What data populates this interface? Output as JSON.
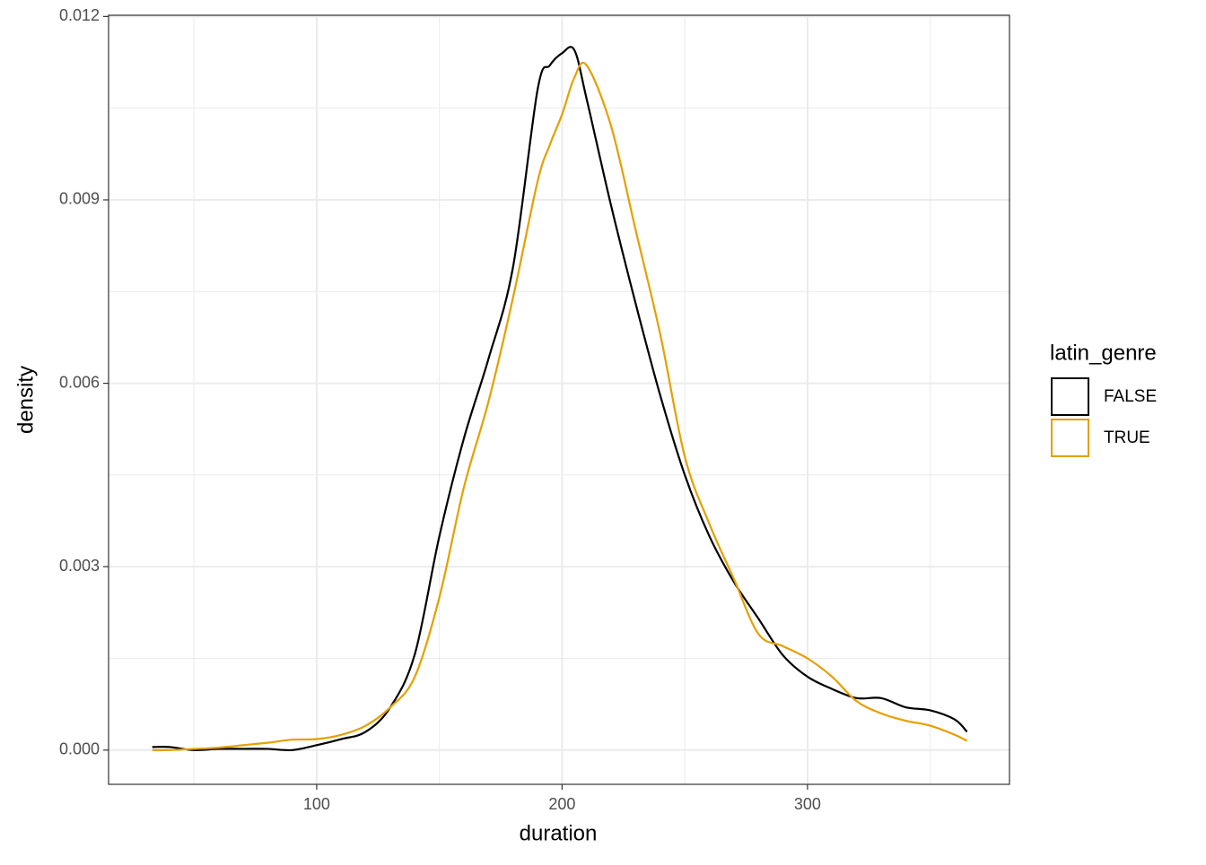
{
  "chart_data": {
    "type": "line",
    "xlabel": "duration",
    "ylabel": "density",
    "legend_title": "latin_genre",
    "legend_position": "right",
    "x": [
      33,
      40,
      50,
      60,
      70,
      80,
      90,
      100,
      110,
      120,
      130,
      140,
      150,
      160,
      170,
      180,
      190,
      195,
      200,
      205,
      210,
      220,
      230,
      240,
      250,
      260,
      270,
      280,
      290,
      300,
      310,
      320,
      330,
      340,
      350,
      360,
      365
    ],
    "series": [
      {
        "name": "FALSE",
        "color": "#000000",
        "values": [
          5e-05,
          5e-05,
          0.0,
          2e-05,
          2e-05,
          2e-05,
          0.0,
          8e-05,
          0.00018,
          0.0003,
          0.0007,
          0.00157,
          0.0035,
          0.0051,
          0.0064,
          0.0079,
          0.0108,
          0.0112,
          0.0114,
          0.01145,
          0.01065,
          0.0089,
          0.0073,
          0.0058,
          0.0045,
          0.0035,
          0.00275,
          0.00215,
          0.00155,
          0.0012,
          0.001,
          0.00085,
          0.00085,
          0.0007,
          0.00065,
          0.0005,
          0.0003
        ]
      },
      {
        "name": "TRUE",
        "color": "#E69F00",
        "values": [
          0.0,
          0.0,
          2e-05,
          4e-05,
          8e-05,
          0.00012,
          0.00017,
          0.00018,
          0.00025,
          0.0004,
          0.0007,
          0.0012,
          0.0025,
          0.0043,
          0.0057,
          0.0074,
          0.0093,
          0.0099,
          0.0104,
          0.011,
          0.0112,
          0.0102,
          0.0085,
          0.0068,
          0.0048,
          0.0037,
          0.0028,
          0.0019,
          0.0017,
          0.0015,
          0.0012,
          0.0008,
          0.0006,
          0.00048,
          0.0004,
          0.00025,
          0.00015
        ]
      }
    ],
    "xlim": [
      15.2,
      382.3
    ],
    "ylim": [
      -0.00056,
      0.01202
    ],
    "xticks": [
      100,
      200,
      300
    ],
    "yticks": [
      {
        "value": 0,
        "label": "0.000"
      },
      {
        "value": 0.003,
        "label": "0.003"
      },
      {
        "value": 0.006,
        "label": "0.006"
      },
      {
        "value": 0.009,
        "label": "0.009"
      },
      {
        "value": 0.012,
        "label": "0.012"
      }
    ],
    "xminor": [
      50,
      150,
      250,
      350
    ],
    "yminor": [
      0.0015,
      0.0045,
      0.0075,
      0.0105
    ],
    "grid": true
  }
}
